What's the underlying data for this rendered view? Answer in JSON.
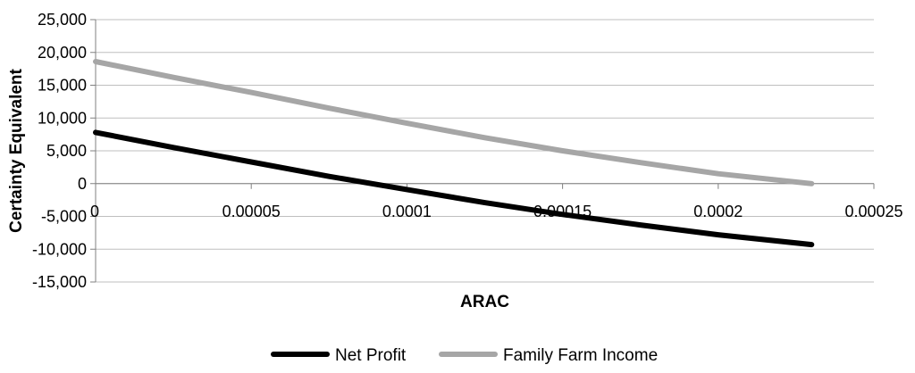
{
  "chart_data": {
    "type": "line",
    "title": "",
    "xlabel": "ARAC",
    "ylabel": "Certainty Equivalent",
    "xlim": [
      0,
      0.00025
    ],
    "ylim": [
      -15000,
      25000
    ],
    "x_ticks": [
      0,
      5e-05,
      0.0001,
      0.00015,
      0.0002,
      0.00025
    ],
    "x_tick_labels": [
      "0",
      "0.00005",
      "0.0001",
      "0.00015",
      "0.0002",
      "0.00025"
    ],
    "y_ticks": [
      25000,
      20000,
      15000,
      10000,
      5000,
      0,
      -5000,
      -10000,
      -15000
    ],
    "y_tick_labels": [
      "25,000",
      "20,000",
      "15,000",
      "10,000",
      "5,000",
      "0",
      "-5,000",
      "-10,000",
      "-15,000"
    ],
    "grid": "horizontal",
    "legend_position": "bottom",
    "x": [
      0,
      2.5e-05,
      5e-05,
      7.5e-05,
      0.0001,
      0.000125,
      0.00015,
      0.000175,
      0.0002,
      0.00023
    ],
    "series": [
      {
        "name": "Net Profit",
        "color": "#000000",
        "values": [
          7800,
          5500,
          3300,
          1100,
          -900,
          -2900,
          -4700,
          -6300,
          -7800,
          -9300
        ]
      },
      {
        "name": "Family Farm Income",
        "color": "#a6a6a6",
        "values": [
          18600,
          16200,
          13900,
          11500,
          9200,
          7000,
          5000,
          3200,
          1500,
          0
        ]
      }
    ]
  }
}
